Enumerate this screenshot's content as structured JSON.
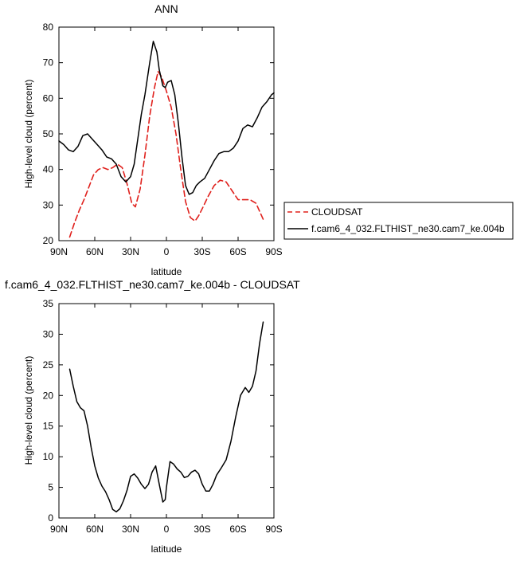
{
  "chart_data": [
    {
      "type": "line",
      "title": "ANN",
      "xlabel": "latitude",
      "ylabel": "High-level cloud (percent)",
      "xlim": [
        90,
        -90
      ],
      "ylim": [
        20,
        80
      ],
      "xticks": [
        90,
        60,
        30,
        0,
        -30,
        -60,
        -90
      ],
      "xtick_labels": [
        "90N",
        "60N",
        "30N",
        "0",
        "30S",
        "60S",
        "90S"
      ],
      "yticks": [
        20,
        30,
        40,
        50,
        60,
        70,
        80
      ],
      "ytick_labels": [
        "20",
        "30",
        "40",
        "50",
        "60",
        "70",
        "80"
      ],
      "grid": false,
      "legend_position": "right",
      "series": [
        {
          "name": "CLOUDSAT",
          "color": "#e0201c",
          "style": "dashed",
          "x": [
            81,
            77,
            73,
            69,
            65,
            61,
            57,
            53,
            49,
            45,
            41,
            37,
            33,
            29,
            26,
            22,
            18,
            14,
            10,
            7,
            4,
            0,
            -4,
            -8,
            -12,
            -16,
            -20,
            -24,
            -27,
            -30,
            -35,
            -40,
            -45,
            -50,
            -55,
            -60,
            -65,
            -70,
            -75,
            -81
          ],
          "y": [
            21,
            25,
            28.5,
            31.5,
            35,
            38.5,
            40,
            40.5,
            40,
            40.5,
            41.5,
            40.5,
            36,
            30.5,
            29.5,
            34.5,
            44,
            55,
            63,
            67.5,
            66,
            62,
            57.5,
            50,
            40,
            31,
            26.5,
            25.5,
            27,
            29,
            32.5,
            35.5,
            37,
            36.5,
            34,
            31.5,
            31.5,
            31.5,
            30.5,
            26
          ]
        },
        {
          "name": "f.cam6_4_032.FLTHIST_ne30.cam7_ke.004b",
          "color": "#000000",
          "style": "solid",
          "x": [
            90,
            86,
            82,
            78,
            74,
            70,
            66,
            62,
            58,
            54,
            50,
            46,
            42,
            38,
            34,
            30,
            27,
            24,
            21,
            18,
            14,
            11,
            8,
            6,
            3,
            1,
            -1,
            -4,
            -7,
            -10,
            -13,
            -16,
            -19,
            -22,
            -25,
            -28,
            -32,
            -36,
            -40,
            -44,
            -48,
            -52,
            -56,
            -60,
            -64,
            -68,
            -72,
            -76,
            -80,
            -84,
            -88,
            -90
          ],
          "y": [
            48,
            47,
            45.5,
            45,
            46.5,
            49.5,
            50,
            48.5,
            47,
            45.5,
            43.5,
            43,
            41.5,
            38,
            36.5,
            38,
            41.5,
            48.5,
            55.5,
            61,
            70,
            76,
            73,
            68,
            63.5,
            63,
            64.5,
            65,
            61,
            53,
            43.5,
            35.5,
            33,
            33.5,
            35.5,
            36.5,
            37.5,
            40,
            42.5,
            44.5,
            45,
            45,
            46,
            48,
            51.5,
            52.5,
            52,
            54.5,
            57.5,
            59,
            61,
            61.5
          ]
        }
      ]
    },
    {
      "type": "line",
      "title": "f.cam6_4_032.FLTHIST_ne30.cam7_ke.004b - CLOUDSAT",
      "xlabel": "latitude",
      "ylabel": "High-level cloud (percent)",
      "xlim": [
        90,
        -90
      ],
      "ylim": [
        0,
        35
      ],
      "xticks": [
        90,
        60,
        30,
        0,
        -30,
        -60,
        -90
      ],
      "xtick_labels": [
        "90N",
        "60N",
        "30N",
        "0",
        "30S",
        "60S",
        "90S"
      ],
      "yticks": [
        0,
        5,
        10,
        15,
        20,
        25,
        30,
        35
      ],
      "ytick_labels": [
        "0",
        "5",
        "10",
        "15",
        "20",
        "25",
        "30",
        "35"
      ],
      "grid": false,
      "series": [
        {
          "color": "#000000",
          "style": "solid",
          "x": [
            81,
            78,
            75,
            72,
            69,
            66,
            63,
            60,
            57,
            54,
            51,
            48,
            45,
            42,
            39,
            36,
            33,
            30,
            27,
            24,
            21,
            18,
            15,
            12,
            9,
            6,
            3,
            1,
            0,
            -3,
            -6,
            -9,
            -12,
            -15,
            -18,
            -21,
            -24,
            -27,
            -30,
            -33,
            -36,
            -39,
            -42,
            -46,
            -50,
            -54,
            -58,
            -62,
            -66,
            -69,
            -72,
            -75,
            -78,
            -81
          ],
          "y": [
            24.3,
            21.5,
            19,
            18,
            17.5,
            15,
            11.5,
            8.5,
            6.5,
            5.2,
            4.3,
            3,
            1.4,
            1,
            1.5,
            2.8,
            4.5,
            6.8,
            7.2,
            6.5,
            5.5,
            4.8,
            5.5,
            7.5,
            8.5,
            5.5,
            2.6,
            3,
            5,
            9.2,
            8.8,
            8,
            7.5,
            6.6,
            6.8,
            7.5,
            7.8,
            7.2,
            5.5,
            4.4,
            4.4,
            5.5,
            7,
            8.2,
            9.5,
            12.5,
            16.5,
            20,
            21.3,
            20.5,
            21.5,
            24,
            28.5,
            32
          ]
        }
      ]
    }
  ]
}
